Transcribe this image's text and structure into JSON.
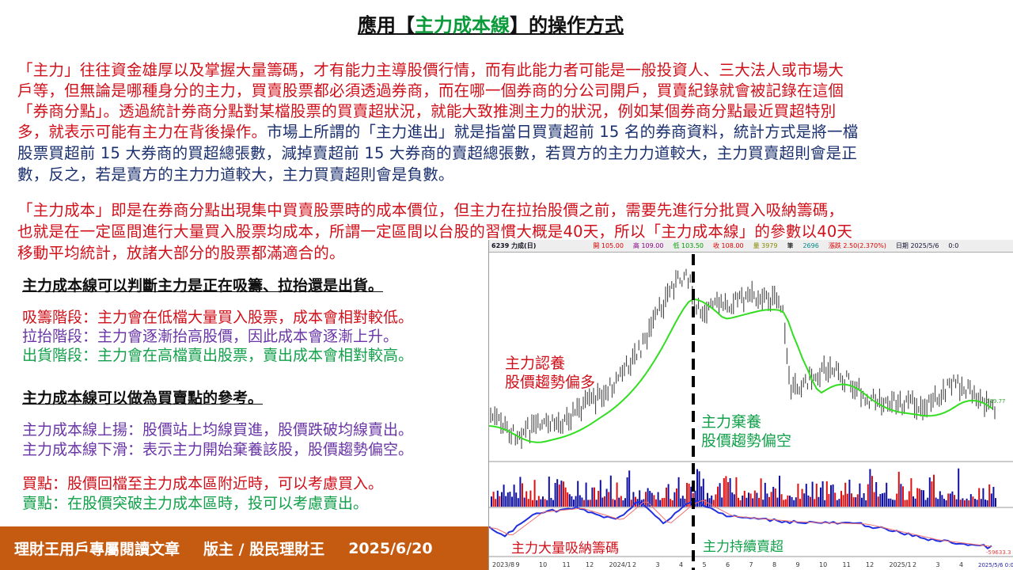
{
  "title": {
    "prefix": "應用【",
    "highlight": "主力成本線",
    "suffix": "】的操作方式"
  },
  "para1": [
    {
      "text": "「主力」往往資金雄厚以及掌握大量籌碼，才有能力主導股價行情，而有此能力者可能是一般投資人、三大法人或市場大",
      "color": "red"
    },
    {
      "text": "戶等，但無論是哪種身分的主力，買賣股票都必須透過券商，而在哪一個券商的分公司開戶，買賣紀錄就會被記錄在這個",
      "color": "red"
    },
    {
      "text": "「券商分點」。透過統計券商分點對某檔股票的買賣超狀況，就能大致推測主力的狀況，例如某個券商分點最近買超特別",
      "color": "red"
    }
  ],
  "para1_line4_red": "多，就表示可能有主力在背後操作。",
  "para1_line4_navy": "市場上所謂的「主力進出」就是指當日買賣超前 15 名的券商資料，統計方式是將一檔",
  "para1_line5": "股票買超前 15 大券商的買超總張數，減掉賣超前 15 大券商的賣超總張數，若買方的主力力道較大，主力買賣超則會是正",
  "para1_line6": "數，反之，若是賣方的主力力道較大，主力買賣超則會是負數。",
  "para2": [
    "「主力成本」即是在券商分點出現集中買賣股票時的成本價位，但主力在拉抬股價之前，需要先進行分批買入吸納籌碼，",
    "也就是在一定區間進行大量買入股票均成本，所謂一定區間以台股的習慣大概是40天，所以「主力成本線」的參數以40天",
    "移動平均統計，放諸大部分的股票都滿適合的。"
  ],
  "section1": {
    "heading": "主力成本線可以判斷主力是正在吸籌、拉抬還是出貨。",
    "items": [
      "吸籌階段：主力會在低檔大量買入股票，成本會相對較低。",
      "拉抬階段：主力會逐漸抬高股價，因此成本會逐漸上升。",
      "出貨階段：主力會在高檔賣出股票，賣出成本會相對較高。"
    ]
  },
  "section2": {
    "heading": "主力成本線可以做為買賣點的參考。",
    "items": [
      "主力成本線上揚：股價站上均線買進，股價跌破均線賣出。",
      "主力成本線下滑：表示主力開始棄養該股，股價趨勢偏空。"
    ]
  },
  "section3": {
    "items": [
      "買點：股價回檔至主力成本區附近時，可以考慮買入。",
      "賣點：在股價突破主力成本區時，投可以考慮賣出。"
    ]
  },
  "footer": {
    "label": "理財王用戶專屬閱讀文章",
    "author": "版主 / 股民理財王",
    "date": "2025/6/20"
  },
  "chart": {
    "header": {
      "stock": "6239 力成(日)",
      "open": "開 105.00",
      "high": "高 109.00",
      "low": "低 103.50",
      "close": "收 108.00",
      "volume": "量 3979",
      "trades_label": "筆",
      "trades": "2696",
      "change": "漲跌 2.50(2.370%)",
      "date": "日期 2025/5/6",
      "time": "0:0"
    },
    "price_label": "119.77",
    "indicator_label": "-59633.3",
    "annotations": {
      "bull1": "主力認養",
      "bull2": "股價趨勢偏多",
      "bear1": "主力棄養",
      "bear2": "股價趨勢偏空",
      "accumulate": "主力大量吸納籌碼",
      "sell": "主力持續賣超"
    },
    "x_ticks": [
      "2023/8",
      "9",
      "10",
      "11",
      "12",
      "2024/1",
      "2",
      "3",
      "4",
      "5",
      "6",
      "7",
      "8",
      "9",
      "10",
      "11",
      "12",
      "2025/1",
      "2",
      "3",
      "4"
    ],
    "cursor_date": "2025/5/6 0:0",
    "colors": {
      "up": "#e01010",
      "down": "#1010a0",
      "ma": "#33dd22"
    }
  }
}
